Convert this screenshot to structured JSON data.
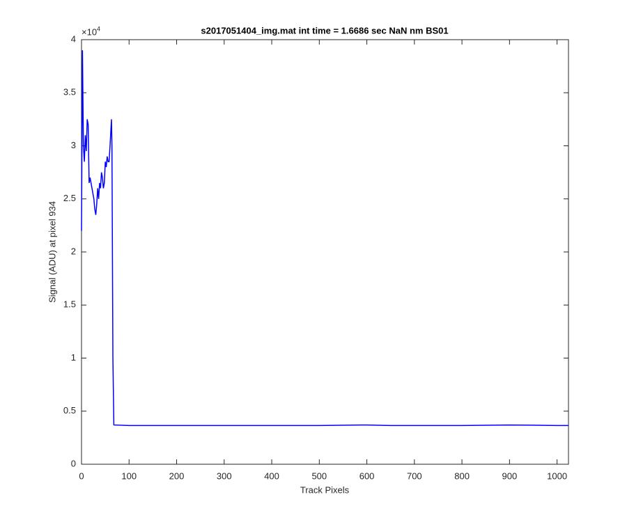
{
  "chart_data": {
    "type": "line",
    "title": "s2017051404_img.mat int time = 1.6686 sec  NaN nm BS01",
    "x_label": "Track Pixels",
    "y_label": "Signal (ADU) at pixel 934",
    "y_exponent_base": "×10",
    "y_exponent": "4",
    "x": [
      0,
      2,
      4,
      6,
      8,
      10,
      12,
      14,
      16,
      18,
      20,
      22,
      24,
      26,
      28,
      30,
      32,
      34,
      36,
      38,
      40,
      42,
      44,
      46,
      48,
      50,
      52,
      54,
      56,
      58,
      60,
      63,
      64,
      66,
      68,
      100,
      200,
      300,
      400,
      500,
      590,
      600,
      650,
      700,
      800,
      900,
      1000,
      1024
    ],
    "series": [
      {
        "name": "Signal",
        "color": "#0000ff",
        "values": [
          2.2,
          3.9,
          3.0,
          2.85,
          3.1,
          2.95,
          3.25,
          3.2,
          2.65,
          2.7,
          2.65,
          2.6,
          2.55,
          2.5,
          2.4,
          2.35,
          2.45,
          2.6,
          2.5,
          2.65,
          2.6,
          2.75,
          2.7,
          2.6,
          2.65,
          2.85,
          2.8,
          2.9,
          2.85,
          2.85,
          3.0,
          3.25,
          3.0,
          1.0,
          0.37,
          0.365,
          0.365,
          0.365,
          0.365,
          0.365,
          0.37,
          0.37,
          0.365,
          0.365,
          0.365,
          0.37,
          0.365,
          0.365
        ]
      }
    ],
    "xlim": [
      0,
      1024
    ],
    "ylim": [
      0,
      4
    ],
    "xticks": [
      0,
      100,
      200,
      300,
      400,
      500,
      600,
      700,
      800,
      900,
      1000
    ],
    "yticks": [
      0,
      0.5,
      1,
      1.5,
      2,
      2.5,
      3,
      3.5,
      4
    ],
    "grid": false
  }
}
